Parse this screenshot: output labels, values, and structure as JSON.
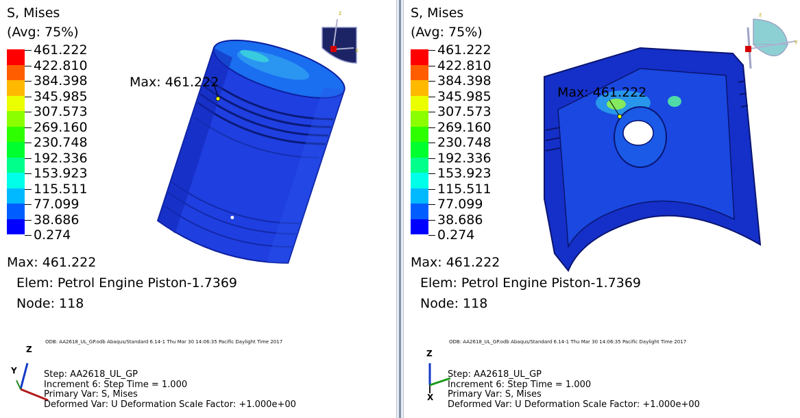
{
  "legend": {
    "title": "S, Mises",
    "subtitle": "(Avg: 75%)",
    "values": [
      "461.222",
      "422.810",
      "384.398",
      "345.985",
      "307.573",
      "269.160",
      "230.748",
      "192.336",
      "153.923",
      "115.511",
      "77.099",
      "38.686",
      "0.274"
    ],
    "colors": [
      "#ff0000",
      "#ff5d00",
      "#ffb900",
      "#ebff00",
      "#8bff00",
      "#2eff00",
      "#00ff2e",
      "#00ff8b",
      "#00ffe8",
      "#00b9ff",
      "#005dff",
      "#0000ff"
    ]
  },
  "max_info": {
    "max_label": "Max: 461.222",
    "elem": "Elem: Petrol Engine Piston-1.7369",
    "node": "Node: 118"
  },
  "model_max_label": "Max: 461.222",
  "footer": {
    "odb_line": "ODB: AA2618_UL_GP.odb    Abaqus/Standard 6.14-1    Thu Mar 30 14:06:35 Pacific Daylight Time 2017",
    "step": "Step: AA2618_UL_GP",
    "increment": "Increment     6: Step Time =     1.000",
    "primary_var": "Primary Var: S, Mises",
    "deformed_var": "Deformed Var: U   Deformation Scale Factor: +1.000e+00"
  },
  "triad_labels": {
    "left": {
      "z": "Z",
      "y": "Y"
    },
    "right": {
      "z": "Z",
      "x": "X"
    }
  },
  "view_cube_labels": {
    "z": "z",
    "y": "y",
    "x": "x"
  }
}
